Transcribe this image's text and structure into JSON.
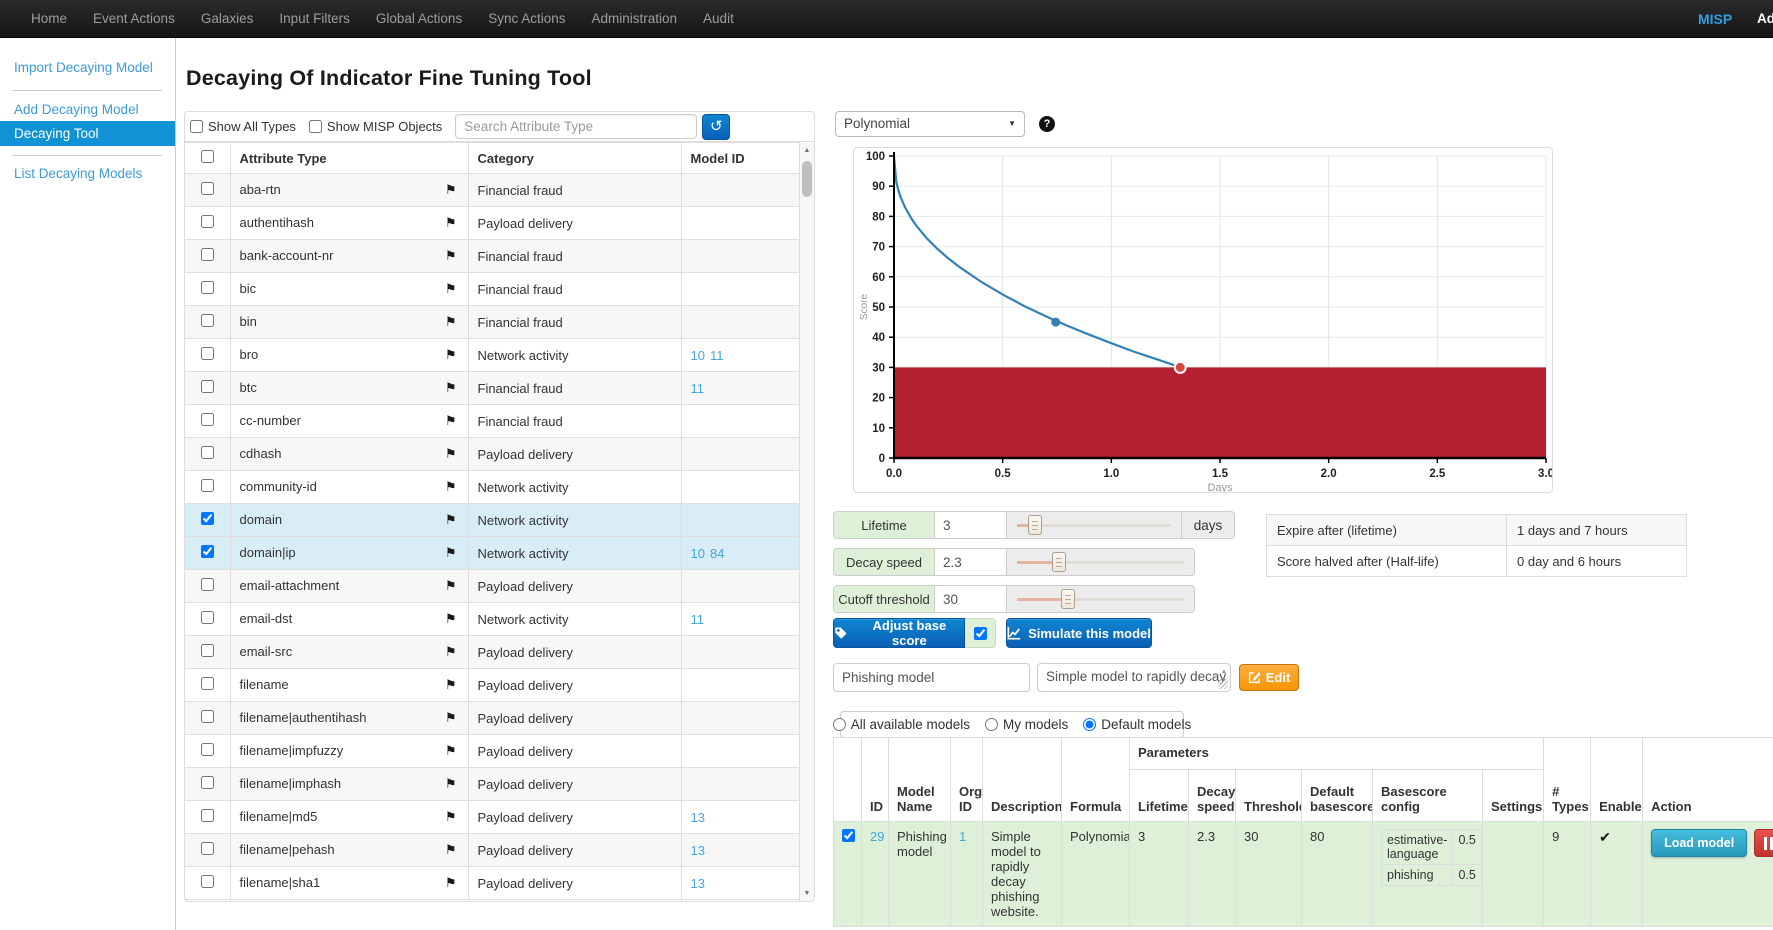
{
  "icons": {
    "flag": "⚑",
    "reload": "↺",
    "caret": "▼",
    "help": "?",
    "check": "✔",
    "arrow_up": "▲",
    "arrow_down": "▼"
  },
  "navbar": {
    "items": [
      "Home",
      "Event Actions",
      "Galaxies",
      "Input Filters",
      "Global Actions",
      "Sync Actions",
      "Administration",
      "Audit"
    ],
    "brand": "MISP",
    "user": "Admin"
  },
  "sidebar": {
    "items": [
      {
        "label": "Import Decaying Model",
        "active": false
      },
      {
        "label": "Add Decaying Model",
        "active": false
      },
      {
        "label": "Decaying Tool",
        "active": true
      },
      {
        "label": "List Decaying Models",
        "active": false
      }
    ]
  },
  "page": {
    "title": "Decaying Of Indicator Fine Tuning Tool"
  },
  "attribute_panel": {
    "show_all_types_label": "Show All Types",
    "show_misp_objects_label": "Show MISP Objects",
    "search_placeholder": "Search Attribute Type",
    "columns": [
      "Attribute Type",
      "Category",
      "Model ID"
    ],
    "rows": [
      {
        "type": "aba-rtn",
        "category": "Financial fraud",
        "model_ids": [],
        "checked": false
      },
      {
        "type": "authentihash",
        "category": "Payload delivery",
        "model_ids": [],
        "checked": false
      },
      {
        "type": "bank-account-nr",
        "category": "Financial fraud",
        "model_ids": [],
        "checked": false
      },
      {
        "type": "bic",
        "category": "Financial fraud",
        "model_ids": [],
        "checked": false
      },
      {
        "type": "bin",
        "category": "Financial fraud",
        "model_ids": [],
        "checked": false
      },
      {
        "type": "bro",
        "category": "Network activity",
        "model_ids": [
          "10",
          "11"
        ],
        "checked": false
      },
      {
        "type": "btc",
        "category": "Financial fraud",
        "model_ids": [
          "11"
        ],
        "checked": false
      },
      {
        "type": "cc-number",
        "category": "Financial fraud",
        "model_ids": [],
        "checked": false
      },
      {
        "type": "cdhash",
        "category": "Payload delivery",
        "model_ids": [],
        "checked": false
      },
      {
        "type": "community-id",
        "category": "Network activity",
        "model_ids": [],
        "checked": false
      },
      {
        "type": "domain",
        "category": "Network activity",
        "model_ids": [],
        "checked": true
      },
      {
        "type": "domain|ip",
        "category": "Network activity",
        "model_ids": [
          "10",
          "84"
        ],
        "checked": true
      },
      {
        "type": "email-attachment",
        "category": "Payload delivery",
        "model_ids": [],
        "checked": false
      },
      {
        "type": "email-dst",
        "category": "Network activity",
        "model_ids": [
          "11"
        ],
        "checked": false
      },
      {
        "type": "email-src",
        "category": "Payload delivery",
        "model_ids": [],
        "checked": false
      },
      {
        "type": "filename",
        "category": "Payload delivery",
        "model_ids": [],
        "checked": false
      },
      {
        "type": "filename|authentihash",
        "category": "Payload delivery",
        "model_ids": [],
        "checked": false
      },
      {
        "type": "filename|impfuzzy",
        "category": "Payload delivery",
        "model_ids": [],
        "checked": false
      },
      {
        "type": "filename|imphash",
        "category": "Payload delivery",
        "model_ids": [],
        "checked": false
      },
      {
        "type": "filename|md5",
        "category": "Payload delivery",
        "model_ids": [
          "13"
        ],
        "checked": false
      },
      {
        "type": "filename|pehash",
        "category": "Payload delivery",
        "model_ids": [
          "13"
        ],
        "checked": false
      },
      {
        "type": "filename|sha1",
        "category": "Payload delivery",
        "model_ids": [
          "13"
        ],
        "checked": false
      }
    ]
  },
  "formula": {
    "selected": "Polynomial"
  },
  "chart_data": {
    "type": "line",
    "title": "",
    "xlabel": "Days",
    "ylabel": "Score",
    "xlim": [
      0,
      3
    ],
    "ylim": [
      0,
      100
    ],
    "x_ticks": [
      "0.0",
      "0.5",
      "1.0",
      "1.5",
      "2.0",
      "2.5",
      "3.0"
    ],
    "y_ticks": [
      0,
      10,
      20,
      30,
      40,
      50,
      60,
      70,
      80,
      90,
      100
    ],
    "grid": true,
    "threshold_fill": {
      "from": 0,
      "to": 30,
      "color": "#b52030"
    },
    "series": [
      {
        "name": "polynomial-decay",
        "color": "#3181b7",
        "points": [
          [
            0,
            100
          ],
          [
            0.01,
            91.6
          ],
          [
            0.02,
            88.7
          ],
          [
            0.03,
            86.5
          ],
          [
            0.05,
            83.1
          ],
          [
            0.08,
            79.3
          ],
          [
            0.1,
            77.2
          ],
          [
            0.15,
            72.8
          ],
          [
            0.2,
            69.2
          ],
          [
            0.25,
            66.1
          ],
          [
            0.3,
            63.3
          ],
          [
            0.4,
            58.4
          ],
          [
            0.5,
            54.1
          ],
          [
            0.6,
            50.3
          ],
          [
            0.7,
            46.9
          ],
          [
            0.75,
            45.3
          ],
          [
            0.8,
            43.7
          ],
          [
            0.9,
            40.8
          ],
          [
            1.0,
            38.0
          ],
          [
            1.1,
            35.3
          ],
          [
            1.2,
            32.9
          ],
          [
            1.32,
            30
          ]
        ]
      }
    ],
    "markers": [
      {
        "name": "current-score-point",
        "x": 0.744,
        "y": 45,
        "r": 4.5,
        "fill": "#3181b7",
        "stroke": ""
      },
      {
        "name": "threshold-point",
        "x": 1.317,
        "y": 30,
        "r": 5.5,
        "fill": "#d9453d",
        "stroke": "#ffffff"
      }
    ]
  },
  "model_controls": {
    "sliders": [
      {
        "label": "Lifetime",
        "value": "3",
        "suffix": "days",
        "handle_pct": 12
      },
      {
        "label": "Decay speed",
        "value": "2.3",
        "suffix": "",
        "handle_pct": 24
      },
      {
        "label": "Cutoff threshold",
        "value": "30",
        "suffix": "",
        "handle_pct": 29
      }
    ],
    "adjust_base_score_label": "Adjust base score",
    "adjust_checkbox_checked": true,
    "simulate_label": "Simulate this model",
    "model_name_value": "Phishing model",
    "model_description_value": "Simple model to rapidly decay",
    "edit_label": "Edit",
    "info_rows": [
      {
        "label": "Expire after (lifetime)",
        "value": "1 days and 7 hours"
      },
      {
        "label": "Score halved after (Half-life)",
        "value": "0 day and 6 hours"
      }
    ],
    "model_filters": [
      {
        "label": "All available models",
        "selected": false
      },
      {
        "label": "My models",
        "selected": false
      },
      {
        "label": "Default models",
        "selected": true
      }
    ]
  },
  "models_table": {
    "group_header": "Parameters",
    "left_columns": [
      "ID",
      "Model Name",
      "Org ID",
      "Description",
      "Formula"
    ],
    "param_columns": [
      "Lifetime",
      "Decay speed",
      "Threshold",
      "Default basescore",
      "Basescore config",
      "Settings"
    ],
    "right_columns": [
      "# Types",
      "Enabled",
      "Action"
    ],
    "row": {
      "checked": true,
      "id": "29",
      "model_name": "Phishing model",
      "org_id": "1",
      "description": "Simple model to rapidly decay phishing website.",
      "formula": "Polynomial",
      "lifetime": "3",
      "decay_speed": "2.3",
      "threshold": "30",
      "default_basescore": "80",
      "basescore_config": [
        {
          "name": "estimative-language",
          "value": "0.5"
        },
        {
          "name": "phishing",
          "value": "0.5"
        }
      ],
      "settings": "",
      "types_count": "9",
      "enabled": true,
      "load_label": "Load model"
    }
  }
}
